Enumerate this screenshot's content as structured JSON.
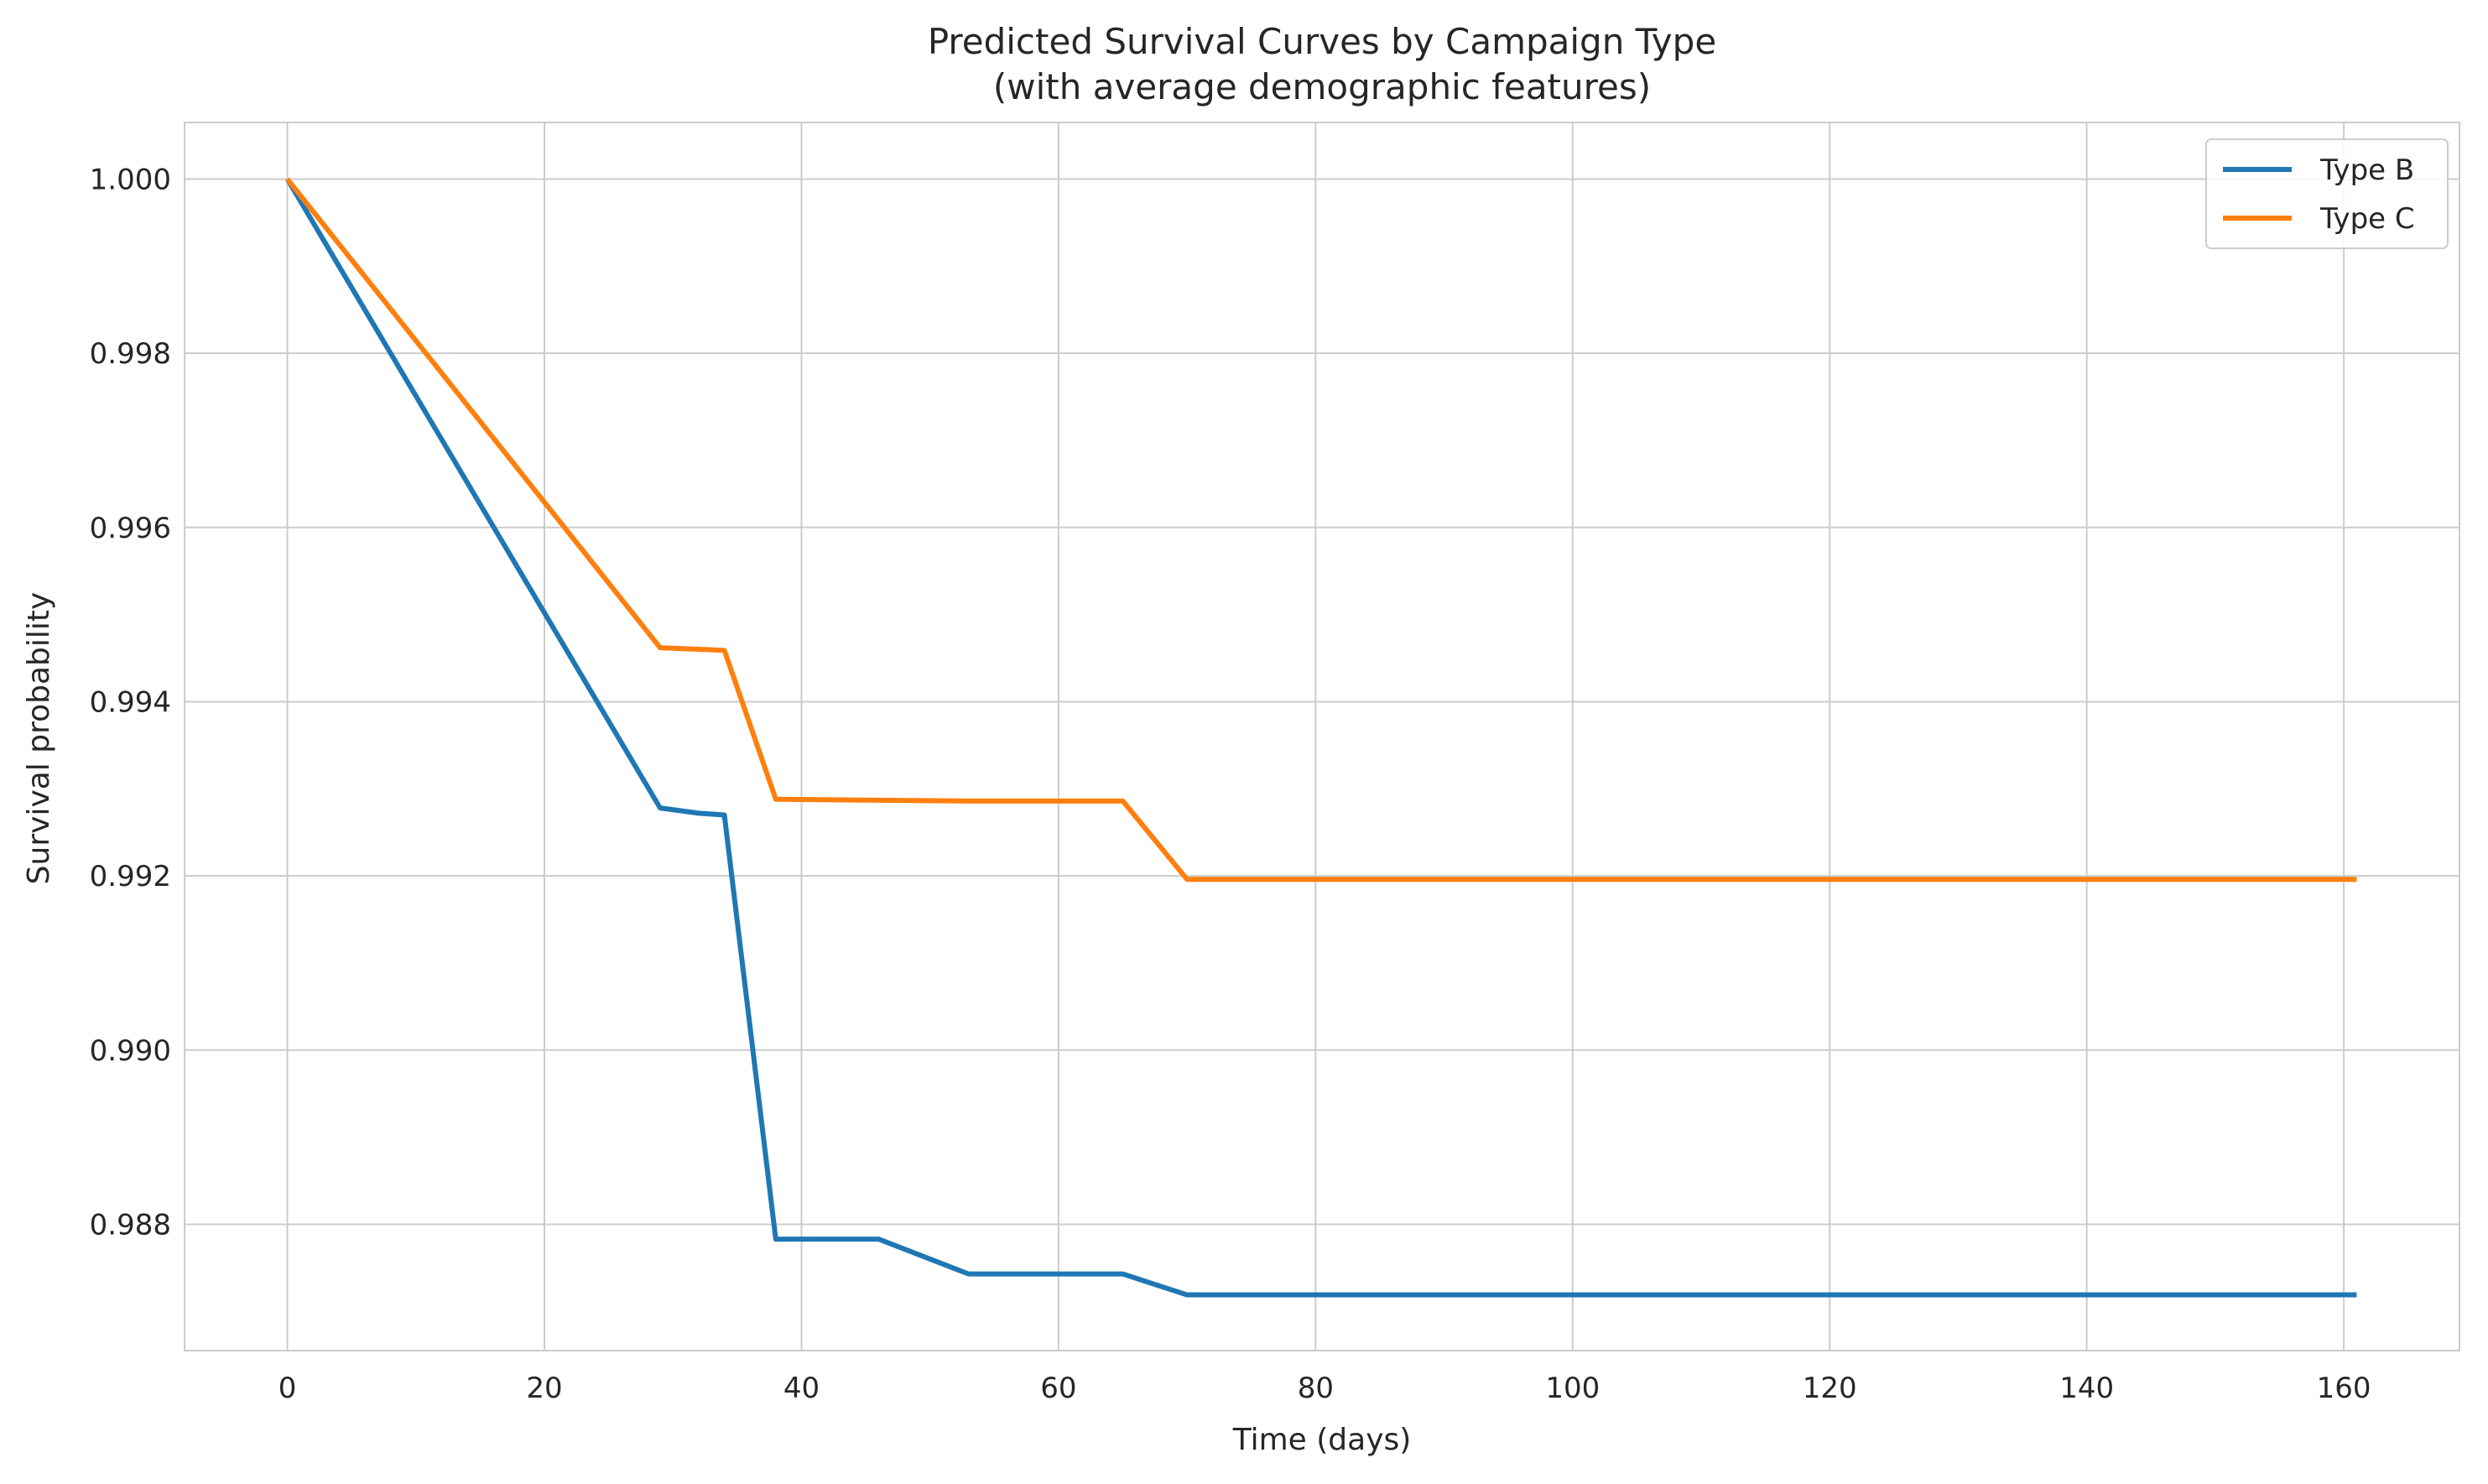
{
  "chart_data": {
    "type": "line",
    "title": "Predicted Survival Curves by Campaign Type",
    "subtitle": "(with average demographic features)",
    "xlabel": "Time (days)",
    "ylabel": "Survival probability",
    "xlim": [
      -8,
      169
    ],
    "ylim": [
      0.98655,
      1.00065
    ],
    "x_ticks": [
      0,
      20,
      40,
      60,
      80,
      100,
      120,
      140,
      160
    ],
    "x_tick_labels": [
      "0",
      "20",
      "40",
      "60",
      "80",
      "100",
      "120",
      "140",
      "160"
    ],
    "y_ticks": [
      0.988,
      0.99,
      0.992,
      0.994,
      0.996,
      0.998,
      1.0
    ],
    "y_tick_labels": [
      "0.988",
      "0.990",
      "0.992",
      "0.994",
      "0.996",
      "0.998",
      "1.000"
    ],
    "grid": true,
    "legend_position": "top-right",
    "series": [
      {
        "name": "Type B",
        "color": "#1f77b4",
        "x": [
          0,
          29,
          32,
          34,
          38,
          46,
          53,
          65,
          70,
          161
        ],
        "y": [
          1.0,
          0.99278,
          0.99272,
          0.9927,
          0.98783,
          0.98783,
          0.98743,
          0.98743,
          0.98719,
          0.98719
        ]
      },
      {
        "name": "Type C",
        "color": "#ff7f0e",
        "x": [
          0,
          29,
          34,
          38,
          53,
          65,
          70,
          161
        ],
        "y": [
          1.0,
          0.99462,
          0.99459,
          0.99288,
          0.99286,
          0.99286,
          0.99196,
          0.99196
        ]
      }
    ]
  },
  "colors": {
    "grid": "#cccccc",
    "text": "#262626",
    "legend_border": "#cccccc"
  }
}
